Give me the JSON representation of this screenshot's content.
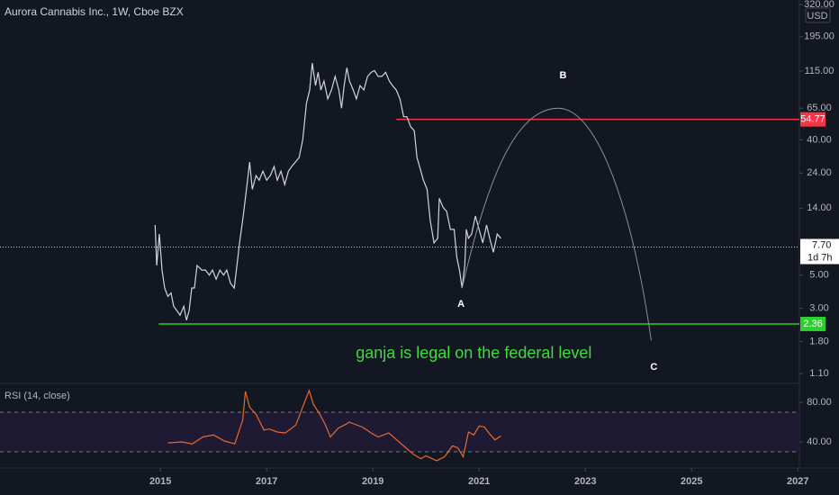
{
  "chart_data": [
    {
      "type": "line",
      "title": "Aurora Cannabis Inc., 1W, Cboe BZX",
      "currency": "USD",
      "log_scale": true,
      "color": "#d1d4dc",
      "x": [
        2014.9,
        2014.93,
        2014.98,
        2015.03,
        2015.08,
        2015.14,
        2015.2,
        2015.25,
        2015.31,
        2015.37,
        2015.44,
        2015.49,
        2015.54,
        2015.59,
        2015.64,
        2015.69,
        2015.78,
        2015.85,
        2015.92,
        2015.98,
        2016.05,
        2016.12,
        2016.19,
        2016.25,
        2016.32,
        2016.39,
        2016.44,
        2016.49,
        2016.56,
        2016.63,
        2016.68,
        2016.73,
        2016.8,
        2016.86,
        2016.93,
        2017.0,
        2017.07,
        2017.14,
        2017.2,
        2017.27,
        2017.34,
        2017.41,
        2017.47,
        2017.54,
        2017.61,
        2017.68,
        2017.75,
        2017.81,
        2017.86,
        2017.92,
        2017.97,
        2018.02,
        2018.08,
        2018.15,
        2018.22,
        2018.29,
        2018.36,
        2018.41,
        2018.46,
        2018.51,
        2018.56,
        2018.63,
        2018.69,
        2018.76,
        2018.83,
        2018.9,
        2018.97,
        2019.03,
        2019.1,
        2019.17,
        2019.24,
        2019.31,
        2019.37,
        2019.44,
        2019.51,
        2019.58,
        2019.64,
        2019.71,
        2019.78,
        2019.83,
        2019.88,
        2019.95,
        2020.02,
        2020.08,
        2020.15,
        2020.22,
        2020.25,
        2020.32,
        2020.39,
        2020.46,
        2020.53,
        2020.58,
        2020.63,
        2020.68,
        2020.73,
        2020.76,
        2020.8,
        2020.86,
        2020.93,
        2021.0,
        2021.07,
        2021.14,
        2021.2,
        2021.27,
        2021.34,
        2021.41
      ],
      "values": [
        10.8,
        5.8,
        9.4,
        5.4,
        4.1,
        3.6,
        3.8,
        3.1,
        2.9,
        2.7,
        3.1,
        2.5,
        2.9,
        4.1,
        4.1,
        5.8,
        5.4,
        5.4,
        5.0,
        5.4,
        4.7,
        5.4,
        5.0,
        5.4,
        4.4,
        4.1,
        5.8,
        8.2,
        12.4,
        20.1,
        28.4,
        18.7,
        23.1,
        21.5,
        24.7,
        21.5,
        23.1,
        26.5,
        21.5,
        24.7,
        20.1,
        24.7,
        26.5,
        28.4,
        30.4,
        40,
        70,
        86,
        130,
        92,
        113,
        86,
        98.6,
        75,
        86,
        106,
        86,
        65,
        92,
        121,
        98.6,
        86,
        75,
        92,
        86,
        106,
        113,
        116,
        106,
        106,
        113,
        98.6,
        92,
        86,
        75,
        57,
        57,
        49,
        46,
        30.4,
        26.5,
        21.5,
        18.7,
        11.6,
        8.2,
        8.8,
        16.3,
        14.2,
        13.3,
        10.1,
        10.1,
        6.6,
        5.4,
        4.1,
        5.8,
        10.1,
        8.8,
        9.4,
        12.4,
        10.1,
        8.2,
        10.8,
        8.8,
        7.1,
        9.4,
        8.8
      ],
      "xlim": [
        2011.98,
        2027.03
      ],
      "xticks": [
        2015,
        2017,
        2019,
        2021,
        2023,
        2025,
        2027
      ],
      "ylim": [
        0.96,
        343
      ],
      "yticks": [
        {
          "value": 320,
          "label": "320.00"
        },
        {
          "value": 195,
          "label": "195.00"
        },
        {
          "value": 115,
          "label": "115.00"
        },
        {
          "value": 65,
          "label": "65.00"
        },
        {
          "value": 40,
          "label": "40.00"
        },
        {
          "value": 24,
          "label": "24.00"
        },
        {
          "value": 14,
          "label": "14.00"
        },
        {
          "value": 5,
          "label": "5.00"
        },
        {
          "value": 3,
          "label": "3.00"
        },
        {
          "value": 1.8,
          "label": "1.80"
        },
        {
          "value": 1.1,
          "label": "1.10"
        }
      ],
      "last_price": {
        "value": 7.7,
        "label": "7.70",
        "countdown": "1d 7h"
      },
      "levels": [
        {
          "value": 54.77,
          "label": "54.77",
          "color": "#f23645",
          "from": 2019.44
        },
        {
          "value": 2.36,
          "label": "2.36",
          "color": "#2bd12b",
          "from": 2014.97
        }
      ],
      "arc": {
        "x": [
          2020.68,
          2022.49,
          2024.24
        ],
        "values": [
          4.1,
          65,
          1.83
        ],
        "color": "#8a8d96"
      },
      "annotations": [
        {
          "text": "A",
          "x": 2020.66,
          "y": 3.2,
          "color": "#ffffff"
        },
        {
          "text": "B",
          "x": 2022.58,
          "y": 107,
          "color": "#ffffff"
        },
        {
          "text": "C",
          "x": 2024.29,
          "y": 1.21,
          "color": "#ffffff"
        },
        {
          "text": "ganja is legal on the federal level",
          "x": 2020.9,
          "y": 1.49,
          "color": "#3ddc3d"
        }
      ]
    },
    {
      "type": "line",
      "title": "RSI (14, close)",
      "color": "#e8692c",
      "x": [
        2015.14,
        2015.4,
        2015.6,
        2015.8,
        2016.0,
        2016.2,
        2016.4,
        2016.55,
        2016.6,
        2016.68,
        2016.8,
        2016.95,
        2017.05,
        2017.2,
        2017.35,
        2017.55,
        2017.7,
        2017.8,
        2017.88,
        2018.0,
        2018.1,
        2018.2,
        2018.35,
        2018.5,
        2018.55,
        2018.8,
        2019.0,
        2019.1,
        2019.3,
        2019.45,
        2019.6,
        2019.75,
        2019.9,
        2020.0,
        2020.2,
        2020.35,
        2020.5,
        2020.6,
        2020.7,
        2020.8,
        2020.9,
        2021.0,
        2021.1,
        2021.2,
        2021.3,
        2021.41
      ],
      "values": [
        39,
        40,
        38,
        45,
        47,
        41,
        38,
        62,
        91,
        75,
        68,
        52,
        53,
        50,
        49,
        57,
        78,
        92,
        78,
        68,
        58,
        45,
        54,
        58,
        60,
        55,
        48,
        45,
        49,
        42,
        35,
        28,
        23,
        26,
        21,
        25,
        36,
        34,
        25,
        50,
        47,
        56,
        55,
        48,
        42,
        46
      ],
      "ylim": [
        15.5,
        97.3
      ],
      "yticks": [
        {
          "value": 80,
          "label": "80.00"
        },
        {
          "value": 40,
          "label": "40.00"
        }
      ],
      "bands": [
        30,
        70
      ],
      "band_color": "#1f1a33"
    }
  ]
}
